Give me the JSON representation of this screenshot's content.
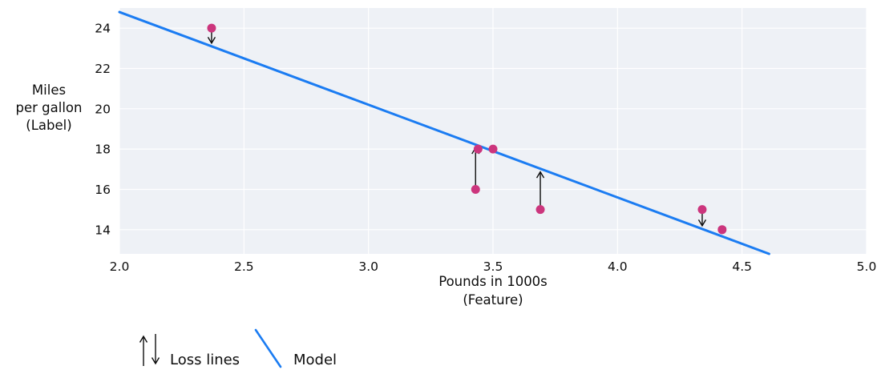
{
  "figure": {
    "ylabel_lines": [
      "Miles",
      "per gallon",
      "(Label)"
    ],
    "xlabel_lines": [
      "Pounds in 1000s",
      "(Feature)"
    ],
    "legend": {
      "loss_label": "Loss lines",
      "model_label": "Model"
    }
  },
  "chart_data": {
    "type": "scatter",
    "title": "",
    "xlabel": "Pounds in 1000s (Feature)",
    "ylabel": "Miles per gallon (Label)",
    "xlim": [
      2.0,
      5.0
    ],
    "ylim": [
      12.8,
      25.0
    ],
    "grid": true,
    "legend_position": "bottom-left",
    "x_ticks": [
      {
        "v": 2.0,
        "label": "2.0"
      },
      {
        "v": 2.5,
        "label": "2.5"
      },
      {
        "v": 3.0,
        "label": "3.0"
      },
      {
        "v": 3.5,
        "label": "3.5"
      },
      {
        "v": 4.0,
        "label": "4.0"
      },
      {
        "v": 4.5,
        "label": "4.5"
      },
      {
        "v": 5.0,
        "label": "5.0"
      }
    ],
    "y_ticks": [
      {
        "v": 14,
        "label": "14"
      },
      {
        "v": 16,
        "label": "16"
      },
      {
        "v": 18,
        "label": "18"
      },
      {
        "v": 20,
        "label": "20"
      },
      {
        "v": 22,
        "label": "22"
      },
      {
        "v": 24,
        "label": "24"
      }
    ],
    "points": [
      {
        "x": 2.37,
        "y": 24,
        "loss_arrow": "down"
      },
      {
        "x": 3.43,
        "y": 16,
        "loss_arrow": "up"
      },
      {
        "x": 3.44,
        "y": 18,
        "loss_arrow": null
      },
      {
        "x": 3.5,
        "y": 18,
        "loss_arrow": null
      },
      {
        "x": 3.69,
        "y": 15,
        "loss_arrow": "up"
      },
      {
        "x": 4.34,
        "y": 15,
        "loss_arrow": "down"
      },
      {
        "x": 4.42,
        "y": 14,
        "loss_arrow": "down"
      }
    ],
    "model": {
      "slope": -4.6,
      "intercept": 34
    },
    "colors": {
      "point": "#cc357d",
      "model_line": "#1b7cf2",
      "plot_bg": "#eef1f6",
      "grid": "#ffffff",
      "arrow": "#0d0d0d"
    }
  }
}
